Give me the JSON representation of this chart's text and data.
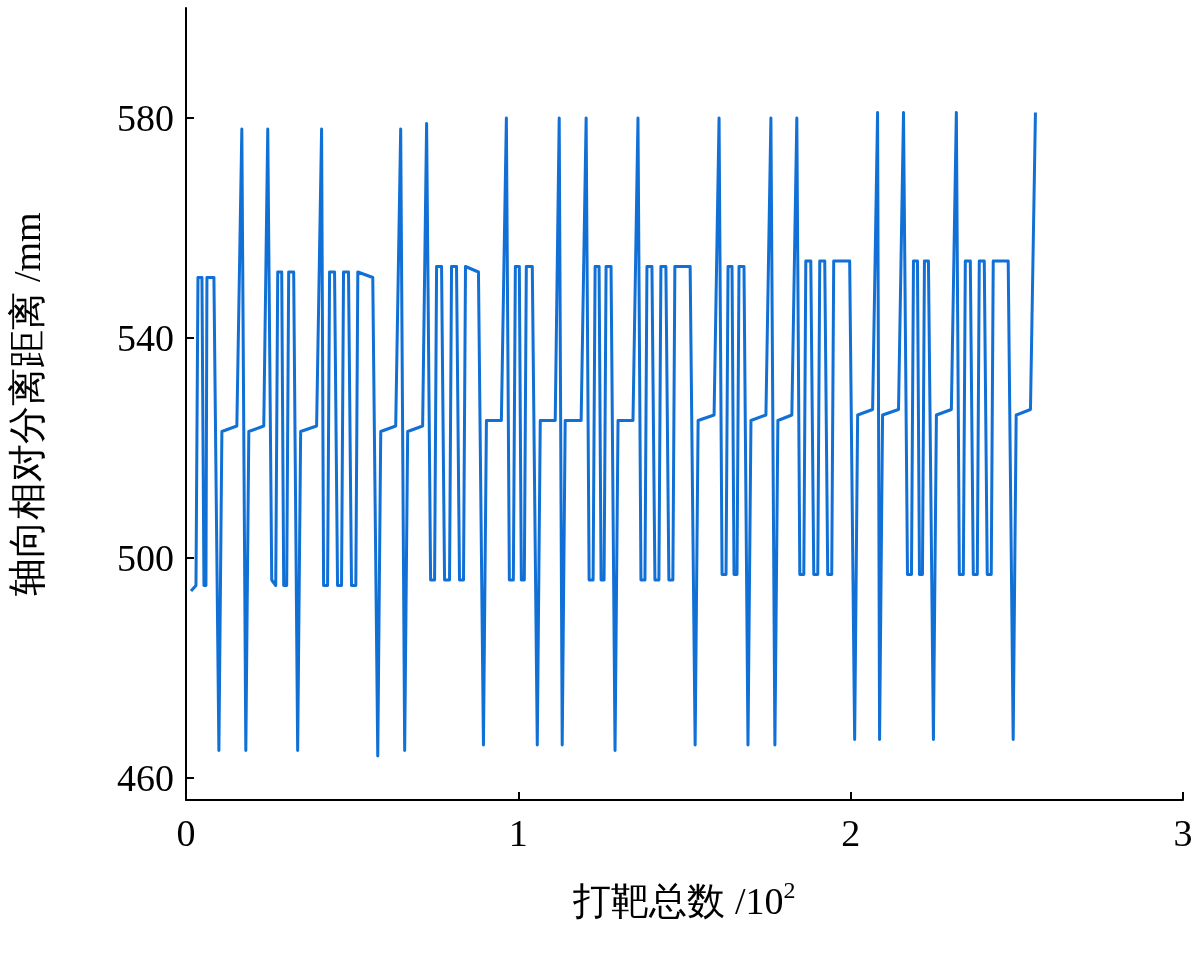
{
  "chart_data": {
    "type": "line",
    "xlabel": "打靶总数 /10$^{2}$",
    "ylabel": "轴向相对分离距离 /mm",
    "xlim": [
      0,
      3
    ],
    "xticks": [
      0,
      1,
      2,
      3
    ],
    "ylim": [
      456,
      600
    ],
    "yticks": [
      460,
      500,
      540,
      580
    ],
    "marker": "none",
    "line_style": "solid",
    "series": [
      {
        "color": "#1170d6",
        "x": [
          0.015,
          0.03,
          0.036,
          0.048,
          0.054,
          0.06,
          0.063,
          0.084,
          0.099,
          0.108,
          0.153,
          0.168,
          0.18,
          0.189,
          0.234,
          0.246,
          0.258,
          0.27,
          0.276,
          0.288,
          0.294,
          0.303,
          0.309,
          0.324,
          0.336,
          0.345,
          0.393,
          0.408,
          0.414,
          0.426,
          0.432,
          0.447,
          0.456,
          0.468,
          0.474,
          0.489,
          0.498,
          0.511,
          0.517,
          0.562,
          0.577,
          0.586,
          0.631,
          0.646,
          0.658,
          0.667,
          0.712,
          0.724,
          0.736,
          0.748,
          0.754,
          0.769,
          0.778,
          0.793,
          0.799,
          0.814,
          0.823,
          0.835,
          0.841,
          0.88,
          0.895,
          0.904,
          0.949,
          0.964,
          0.973,
          0.985,
          0.991,
          1.003,
          1.009,
          1.018,
          1.024,
          1.042,
          1.057,
          1.066,
          1.111,
          1.123,
          1.132,
          1.141,
          1.189,
          1.204,
          1.213,
          1.225,
          1.231,
          1.243,
          1.249,
          1.258,
          1.264,
          1.279,
          1.291,
          1.3,
          1.345,
          1.36,
          1.369,
          1.381,
          1.387,
          1.402,
          1.411,
          1.423,
          1.429,
          1.444,
          1.453,
          1.465,
          1.471,
          1.517,
          1.532,
          1.541,
          1.589,
          1.604,
          1.613,
          1.625,
          1.631,
          1.643,
          1.649,
          1.658,
          1.664,
          1.679,
          1.691,
          1.7,
          1.745,
          1.76,
          1.772,
          1.781,
          1.823,
          1.838,
          1.847,
          1.859,
          1.865,
          1.88,
          1.889,
          1.901,
          1.907,
          1.922,
          1.931,
          1.943,
          1.949,
          1.997,
          2.012,
          2.021,
          2.066,
          2.081,
          2.087,
          2.096,
          2.144,
          2.159,
          2.171,
          2.183,
          2.189,
          2.201,
          2.207,
          2.216,
          2.222,
          2.234,
          2.249,
          2.258,
          2.303,
          2.318,
          2.327,
          2.339,
          2.345,
          2.36,
          2.369,
          2.381,
          2.387,
          2.402,
          2.411,
          2.423,
          2.429,
          2.474,
          2.489,
          2.498,
          2.541,
          2.556
        ],
        "values": [
          494,
          495,
          551,
          551,
          495,
          495,
          551,
          551,
          465,
          523,
          524,
          578,
          465,
          523,
          524,
          578,
          496,
          495,
          552,
          552,
          495,
          495,
          552,
          552,
          465,
          523,
          524,
          578,
          495,
          495,
          552,
          552,
          495,
          495,
          552,
          552,
          495,
          495,
          552,
          551,
          464,
          523,
          524,
          578,
          465,
          523,
          524,
          579,
          496,
          496,
          553,
          553,
          496,
          496,
          553,
          553,
          496,
          496,
          553,
          552,
          466,
          525,
          525,
          580,
          496,
          496,
          553,
          553,
          496,
          496,
          553,
          553,
          466,
          525,
          525,
          580,
          466,
          525,
          525,
          580,
          496,
          496,
          553,
          553,
          496,
          496,
          553,
          553,
          465,
          525,
          525,
          580,
          496,
          496,
          553,
          553,
          496,
          496,
          553,
          553,
          496,
          496,
          553,
          553,
          466,
          525,
          526,
          580,
          497,
          497,
          553,
          553,
          497,
          497,
          553,
          553,
          466,
          525,
          526,
          580,
          466,
          525,
          526,
          580,
          497,
          497,
          554,
          554,
          497,
          497,
          554,
          554,
          497,
          497,
          554,
          554,
          467,
          526,
          527,
          581,
          467,
          526,
          527,
          581,
          497,
          497,
          554,
          554,
          497,
          497,
          554,
          554,
          467,
          526,
          527,
          581,
          497,
          497,
          554,
          554,
          497,
          497,
          554,
          554,
          497,
          497,
          554,
          554,
          467,
          526,
          527,
          581
        ]
      }
    ]
  }
}
